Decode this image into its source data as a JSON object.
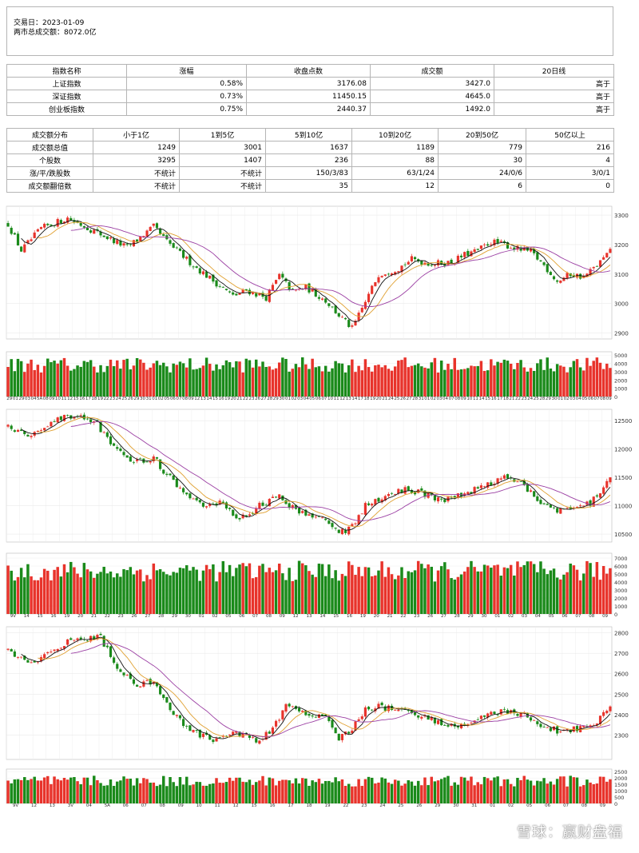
{
  "header": {
    "date_label": "交易日：2023-01-09",
    "turnover_label": "两市总成交额：8072.0亿"
  },
  "index_table": {
    "headers": [
      "指数名称",
      "涨幅",
      "收盘点数",
      "成交额",
      "20日线"
    ],
    "rows": [
      [
        "上证指数",
        "0.58%",
        "3176.08",
        "3427.0",
        "高于"
      ],
      [
        "深证指数",
        "0.73%",
        "11450.15",
        "4645.0",
        "高于"
      ],
      [
        "创业板指数",
        "0.75%",
        "2440.37",
        "1492.0",
        "高于"
      ]
    ]
  },
  "dist_table": {
    "headers": [
      "成交额分布",
      "小于1亿",
      "1到5亿",
      "5到10亿",
      "10到20亿",
      "20到50亿",
      "50亿以上"
    ],
    "rows": [
      [
        "成交额总值",
        "1249",
        "3001",
        "1637",
        "1189",
        "779",
        "216"
      ],
      [
        "个股数",
        "3295",
        "1407",
        "236",
        "88",
        "30",
        "4"
      ],
      [
        "涨/平/跌股数",
        "不统计",
        "不统计",
        "150/3/83",
        "63/1/24",
        "24/0/6",
        "3/0/1"
      ],
      [
        "成交额翻倍数",
        "不统计",
        "不统计",
        "35",
        "12",
        "6",
        "0"
      ]
    ]
  },
  "chart_data": [
    {
      "type": "candlestick",
      "name_ref": "上证指数",
      "ylim": [
        2880,
        3330
      ],
      "y_ticks": [
        2900,
        3000,
        3100,
        3200,
        3300
      ],
      "anchors": [
        [
          0,
          3270
        ],
        [
          4,
          3180
        ],
        [
          10,
          3255
        ],
        [
          18,
          3290
        ],
        [
          28,
          3235
        ],
        [
          36,
          3190
        ],
        [
          44,
          3260
        ],
        [
          48,
          3210
        ],
        [
          56,
          3130
        ],
        [
          64,
          3060
        ],
        [
          68,
          3025
        ],
        [
          72,
          3045
        ],
        [
          78,
          3020
        ],
        [
          82,
          3095
        ],
        [
          86,
          3040
        ],
        [
          90,
          3055
        ],
        [
          96,
          3010
        ],
        [
          100,
          2960
        ],
        [
          104,
          2915
        ],
        [
          108,
          3005
        ],
        [
          112,
          3100
        ],
        [
          118,
          3120
        ],
        [
          122,
          3150
        ],
        [
          128,
          3135
        ],
        [
          134,
          3140
        ],
        [
          138,
          3165
        ],
        [
          142,
          3180
        ],
        [
          146,
          3210
        ],
        [
          150,
          3200
        ],
        [
          154,
          3185
        ],
        [
          158,
          3175
        ],
        [
          162,
          3130
        ],
        [
          166,
          3075
        ],
        [
          170,
          3100
        ],
        [
          174,
          3090
        ],
        [
          178,
          3130
        ],
        [
          182,
          3176
        ]
      ]
    },
    {
      "type": "candlestick",
      "name_ref": "深证指数",
      "ylim": [
        10360,
        12700
      ],
      "y_ticks": [
        10500,
        11000,
        11500,
        12000,
        12500
      ],
      "anchors": [
        [
          0,
          12400
        ],
        [
          6,
          12200
        ],
        [
          12,
          12450
        ],
        [
          18,
          12600
        ],
        [
          26,
          12500
        ],
        [
          32,
          12000
        ],
        [
          38,
          11750
        ],
        [
          44,
          11850
        ],
        [
          48,
          11550
        ],
        [
          54,
          11150
        ],
        [
          60,
          10950
        ],
        [
          64,
          11050
        ],
        [
          70,
          10750
        ],
        [
          76,
          11000
        ],
        [
          82,
          11150
        ],
        [
          88,
          10900
        ],
        [
          96,
          10750
        ],
        [
          100,
          10500
        ],
        [
          104,
          10650
        ],
        [
          108,
          11000
        ],
        [
          114,
          11150
        ],
        [
          120,
          11300
        ],
        [
          126,
          11200
        ],
        [
          132,
          11100
        ],
        [
          138,
          11200
        ],
        [
          144,
          11350
        ],
        [
          150,
          11500
        ],
        [
          156,
          11350
        ],
        [
          160,
          11100
        ],
        [
          166,
          10900
        ],
        [
          170,
          10950
        ],
        [
          176,
          11050
        ],
        [
          182,
          11450
        ]
      ]
    },
    {
      "type": "candlestick",
      "name_ref": "创业板指数",
      "ylim": [
        2180,
        2830
      ],
      "y_ticks": [
        2300,
        2400,
        2500,
        2600,
        2700,
        2800
      ],
      "anchors": [
        [
          0,
          2720
        ],
        [
          6,
          2650
        ],
        [
          12,
          2700
        ],
        [
          20,
          2770
        ],
        [
          28,
          2780
        ],
        [
          32,
          2650
        ],
        [
          38,
          2550
        ],
        [
          44,
          2560
        ],
        [
          50,
          2400
        ],
        [
          56,
          2320
        ],
        [
          62,
          2270
        ],
        [
          66,
          2310
        ],
        [
          72,
          2300
        ],
        [
          76,
          2270
        ],
        [
          80,
          2330
        ],
        [
          84,
          2440
        ],
        [
          90,
          2400
        ],
        [
          96,
          2380
        ],
        [
          100,
          2280
        ],
        [
          104,
          2330
        ],
        [
          108,
          2430
        ],
        [
          112,
          2440
        ],
        [
          118,
          2420
        ],
        [
          124,
          2400
        ],
        [
          130,
          2360
        ],
        [
          136,
          2340
        ],
        [
          142,
          2380
        ],
        [
          148,
          2410
        ],
        [
          154,
          2410
        ],
        [
          160,
          2360
        ],
        [
          166,
          2320
        ],
        [
          172,
          2330
        ],
        [
          178,
          2360
        ],
        [
          182,
          2440
        ]
      ]
    }
  ],
  "volume_data": [
    {
      "ylim": [
        0,
        5400
      ],
      "y_ticks": [
        0,
        1000,
        2000,
        3000,
        4000,
        5000
      ],
      "base": 3700
    },
    {
      "ylim": [
        0,
        7600
      ],
      "y_ticks": [
        0,
        1000,
        2000,
        3000,
        4000,
        5000,
        6000,
        7000
      ],
      "base": 5200
    },
    {
      "ylim": [
        0,
        2700
      ],
      "y_ticks": [
        0,
        500,
        1000,
        1500,
        2000,
        2500
      ],
      "base": 1700
    }
  ],
  "date_labels": {
    "panel1": [
      "29",
      "01",
      "29",
      "03",
      "04",
      "5A",
      "08",
      "09",
      "10",
      "11",
      "12",
      "15",
      "16",
      "17",
      "18",
      "19",
      "22",
      "23",
      "24",
      "25",
      "26",
      "29",
      "30",
      "31",
      "01",
      "02",
      "05",
      "06",
      "07",
      "08",
      "09",
      "12",
      "13",
      "14",
      "15",
      "16",
      "19",
      "20",
      "21",
      "22",
      "23",
      "26",
      "27",
      "28",
      "29",
      "30",
      "01",
      "02",
      "03",
      "04",
      "05",
      "06",
      "07",
      "10",
      "11",
      "12",
      "13",
      "14",
      "17",
      "18",
      "19",
      "20",
      "21",
      "24",
      "25",
      "26",
      "27",
      "28",
      "31",
      "01",
      "02",
      "03",
      "04",
      "07",
      "08",
      "09",
      "10",
      "11",
      "14",
      "15",
      "16",
      "17",
      "18",
      "21",
      "22",
      "23",
      "24",
      "25",
      "28",
      "29",
      "30",
      "01",
      "02",
      "03",
      "04",
      "05",
      "06",
      "07",
      "08",
      "09"
    ],
    "panel2": [
      "9V",
      "14",
      "15",
      "16",
      "19",
      "20",
      "21",
      "22",
      "23",
      "26",
      "27",
      "28",
      "29",
      "30",
      "01",
      "02",
      "05",
      "06",
      "07",
      "08",
      "09",
      "12",
      "13",
      "14",
      "15",
      "16",
      "19",
      "20",
      "21",
      "22",
      "23",
      "26",
      "27",
      "28",
      "29",
      "30",
      "01",
      "02",
      "03",
      "04",
      "05",
      "06",
      "07",
      "08",
      "09"
    ],
    "panel3": [
      "9V",
      "12",
      "13",
      "3V",
      "04",
      "5A",
      "06",
      "07",
      "08",
      "09",
      "10",
      "11",
      "12",
      "15",
      "16",
      "17",
      "18",
      "19",
      "22",
      "23",
      "24",
      "25",
      "26",
      "29",
      "30",
      "31",
      "01",
      "02",
      "05",
      "06",
      "07",
      "08",
      "09"
    ]
  },
  "watermark": "雪球：赢财盘福"
}
